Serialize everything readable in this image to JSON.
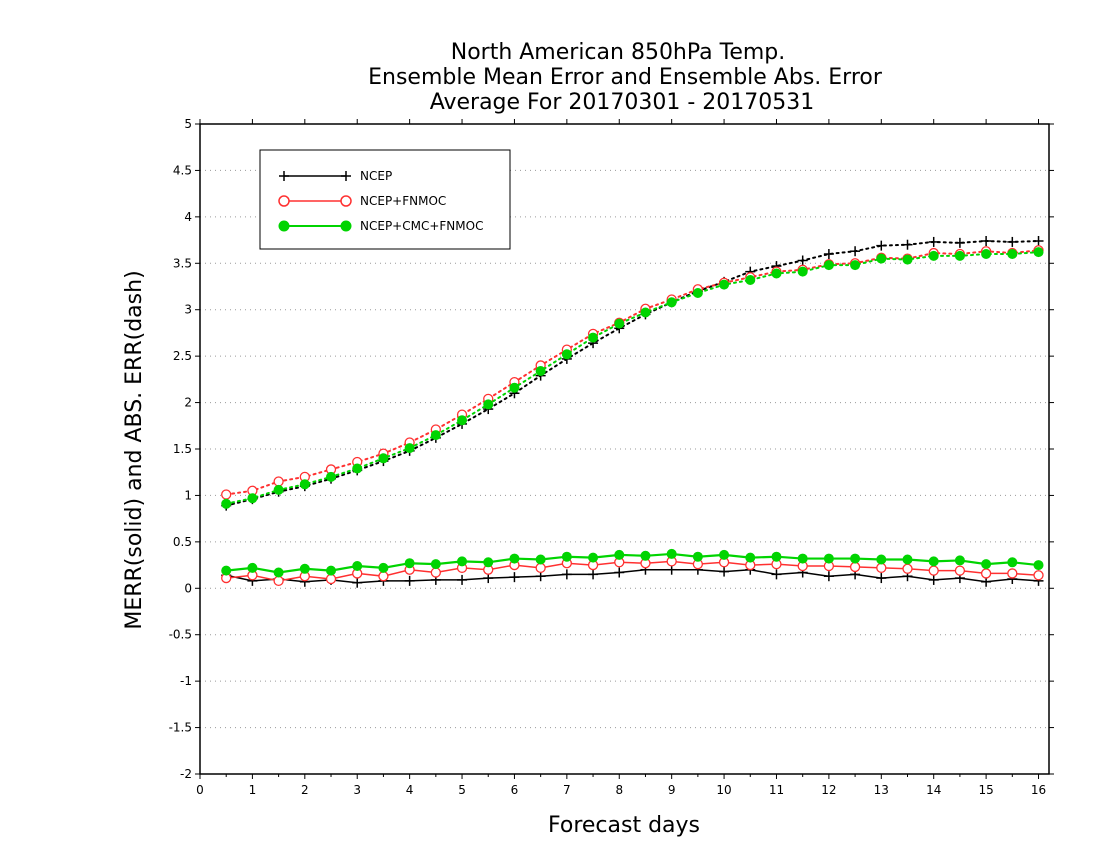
{
  "chart_data": {
    "type": "line",
    "title": [
      "North American 850hPa Temp.",
      "Ensemble Mean Error and Ensemble Abs. Error",
      "Average For 20170301 - 20170531"
    ],
    "xlabel": "Forecast days",
    "ylabel": "MERR(solid) and ABS. ERR(dash)",
    "xlim": [
      0,
      16.2
    ],
    "ylim": [
      -2,
      5
    ],
    "xticks": [
      0,
      1,
      2,
      3,
      4,
      5,
      6,
      7,
      8,
      9,
      10,
      11,
      12,
      13,
      14,
      15,
      16
    ],
    "yticks": [
      -2,
      -1.5,
      -1,
      -0.5,
      0,
      0.5,
      1,
      1.5,
      2,
      2.5,
      3,
      3.5,
      4,
      4.5,
      5
    ],
    "ytick_labels": [
      "-2",
      "-1.5",
      "-1",
      "-0.5",
      "0",
      "0.5",
      "1",
      "1.5",
      "2",
      "2.5",
      "3",
      "3.5",
      "4",
      "4.5",
      "5"
    ],
    "grid": true,
    "legend_position": "top-left",
    "x": [
      0.5,
      1,
      1.5,
      2,
      2.5,
      3,
      3.5,
      4,
      4.5,
      5,
      5.5,
      6,
      6.5,
      7,
      7.5,
      8,
      8.5,
      9,
      9.5,
      10,
      10.5,
      11,
      11.5,
      12,
      12.5,
      13,
      13.5,
      14,
      14.5,
      15,
      15.5,
      16
    ],
    "series": [
      {
        "name": "NCEP",
        "color": "#000000",
        "marker": "plus",
        "merr": [
          0.14,
          0.08,
          0.1,
          0.07,
          0.09,
          0.06,
          0.08,
          0.08,
          0.09,
          0.09,
          0.11,
          0.12,
          0.13,
          0.15,
          0.15,
          0.17,
          0.2,
          0.2,
          0.2,
          0.18,
          0.2,
          0.15,
          0.17,
          0.13,
          0.15,
          0.11,
          0.13,
          0.09,
          0.11,
          0.07,
          0.1,
          0.08
        ],
        "abs_err": [
          0.89,
          0.96,
          1.04,
          1.1,
          1.18,
          1.27,
          1.37,
          1.48,
          1.62,
          1.77,
          1.93,
          2.1,
          2.29,
          2.47,
          2.64,
          2.8,
          2.95,
          3.08,
          3.2,
          3.3,
          3.41,
          3.47,
          3.53,
          3.6,
          3.63,
          3.69,
          3.7,
          3.73,
          3.72,
          3.74,
          3.73,
          3.74
        ]
      },
      {
        "name": "NCEP+FNMOC",
        "color": "#ff3030",
        "marker": "open-circle",
        "merr": [
          0.11,
          0.14,
          0.08,
          0.13,
          0.1,
          0.16,
          0.13,
          0.2,
          0.17,
          0.22,
          0.2,
          0.25,
          0.22,
          0.27,
          0.25,
          0.28,
          0.27,
          0.29,
          0.26,
          0.28,
          0.25,
          0.26,
          0.24,
          0.24,
          0.23,
          0.22,
          0.21,
          0.19,
          0.19,
          0.16,
          0.16,
          0.14
        ],
        "abs_err": [
          1.01,
          1.05,
          1.15,
          1.2,
          1.28,
          1.36,
          1.45,
          1.57,
          1.71,
          1.87,
          2.04,
          2.22,
          2.4,
          2.57,
          2.74,
          2.86,
          3.01,
          3.11,
          3.22,
          3.29,
          3.35,
          3.41,
          3.43,
          3.49,
          3.5,
          3.56,
          3.55,
          3.61,
          3.6,
          3.63,
          3.61,
          3.64
        ]
      },
      {
        "name": "NCEP+CMC+FNMOC",
        "color": "#00d400",
        "marker": "filled-circle",
        "merr": [
          0.19,
          0.22,
          0.17,
          0.21,
          0.19,
          0.24,
          0.22,
          0.27,
          0.26,
          0.29,
          0.28,
          0.32,
          0.31,
          0.34,
          0.33,
          0.36,
          0.35,
          0.37,
          0.34,
          0.36,
          0.33,
          0.34,
          0.32,
          0.32,
          0.32,
          0.31,
          0.31,
          0.29,
          0.3,
          0.26,
          0.28,
          0.25
        ],
        "abs_err": [
          0.91,
          0.97,
          1.06,
          1.12,
          1.2,
          1.29,
          1.4,
          1.51,
          1.65,
          1.81,
          1.98,
          2.16,
          2.34,
          2.52,
          2.7,
          2.85,
          2.97,
          3.08,
          3.18,
          3.27,
          3.32,
          3.39,
          3.41,
          3.48,
          3.48,
          3.55,
          3.54,
          3.58,
          3.58,
          3.6,
          3.6,
          3.62
        ]
      }
    ]
  }
}
